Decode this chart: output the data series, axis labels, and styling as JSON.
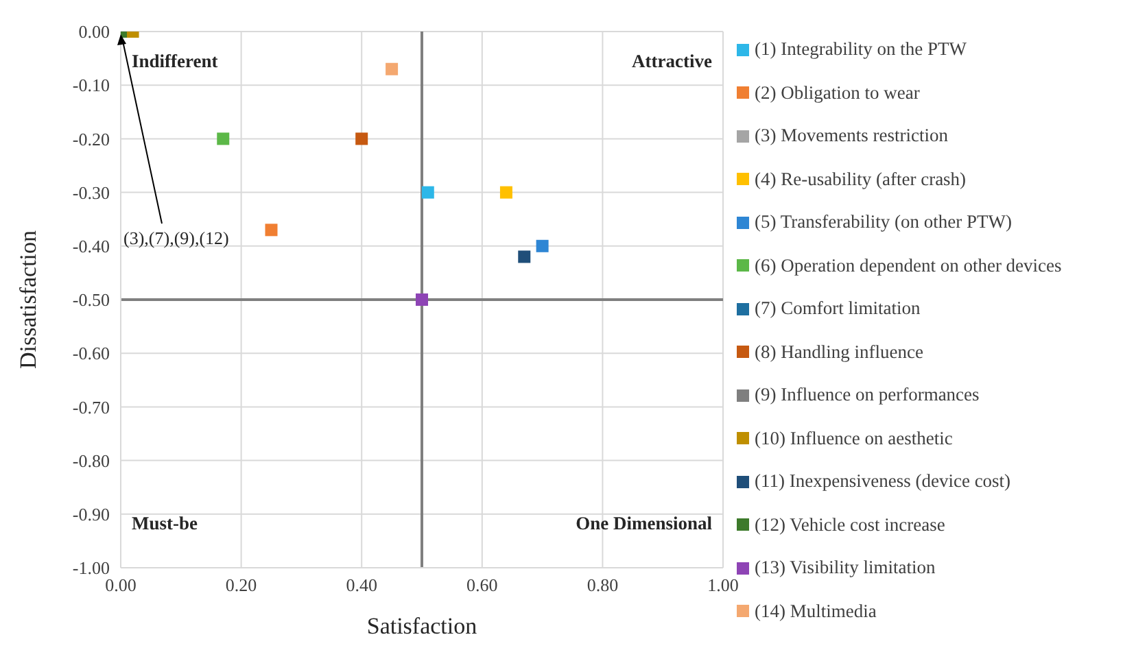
{
  "chart_data": {
    "type": "scatter",
    "xlabel": "Satisfaction",
    "ylabel": "Dissatisfaction",
    "xlim": [
      0,
      1
    ],
    "xticks": [
      {
        "value": 0,
        "label": "0.00"
      },
      {
        "value": 0.2,
        "label": "0.20"
      },
      {
        "value": 0.4,
        "label": "0.40"
      },
      {
        "value": 0.6,
        "label": "0.60"
      },
      {
        "value": 0.8,
        "label": "0.80"
      },
      {
        "value": 1,
        "label": "1.00"
      }
    ],
    "ylim": [
      -1,
      0
    ],
    "yticks": [
      {
        "value": 0,
        "label": "0.00"
      },
      {
        "value": -0.1,
        "label": "-0.10"
      },
      {
        "value": -0.2,
        "label": "-0.20"
      },
      {
        "value": -0.3,
        "label": "-0.30"
      },
      {
        "value": -0.4,
        "label": "-0.40"
      },
      {
        "value": -0.5,
        "label": "-0.50"
      },
      {
        "value": -0.6,
        "label": "-0.60"
      },
      {
        "value": -0.7,
        "label": "-0.70"
      },
      {
        "value": -0.8,
        "label": "-0.80"
      },
      {
        "value": -0.9,
        "label": "-0.90"
      },
      {
        "value": -1,
        "label": "-1.00"
      }
    ],
    "grid": true,
    "legend": "right",
    "marker": "square",
    "ref_lines": [
      {
        "axis": "x",
        "value": 0.5,
        "color": "#7f7f7f"
      },
      {
        "axis": "y",
        "value": -0.5,
        "color": "#7f7f7f"
      }
    ],
    "annotations": [
      "Indifferent",
      "Attractive",
      "Must-be",
      "One Dimensional",
      {
        "text": "(3),(7),(9),(12)",
        "x": 0,
        "y": 0
      }
    ],
    "series": [
      {
        "name": "(1) Integrability on the PTW",
        "color": "#2db7e8",
        "x": [
          0.51
        ],
        "values": [
          -0.3
        ]
      },
      {
        "name": "(2) Obligation to wear",
        "color": "#f07f32",
        "x": [
          0.25
        ],
        "values": [
          -0.37
        ]
      },
      {
        "name": "(3) Movements restriction",
        "color": "#a5a5a5",
        "x": [
          null
        ],
        "values": [
          null
        ]
      },
      {
        "name": "(4) Re-usability (after crash)",
        "color": "#ffc000",
        "x": [
          0.64
        ],
        "values": [
          -0.3
        ]
      },
      {
        "name": "(5) Transferability (on other PTW)",
        "color": "#2e86d4",
        "x": [
          0.7
        ],
        "values": [
          -0.4
        ]
      },
      {
        "name": "(6) Operation dependent on other devices",
        "color": "#5cb848",
        "x": [
          0.17
        ],
        "values": [
          -0.2
        ]
      },
      {
        "name": "(7) Comfort limitation",
        "color": "#1e6fa0",
        "x": [
          null
        ],
        "values": [
          null
        ]
      },
      {
        "name": "(8) Handling influence",
        "color": "#c65911",
        "x": [
          0.4
        ],
        "values": [
          -0.2
        ]
      },
      {
        "name": "(9) Influence on performances",
        "color": "#7f7f7f",
        "x": [
          null
        ],
        "values": [
          null
        ]
      },
      {
        "name": "(10) Influence on aesthetic",
        "color": "#bf8f00",
        "x": [
          0.02
        ],
        "values": [
          0
        ]
      },
      {
        "name": "(11) Inexpensiveness (device cost)",
        "color": "#1f4e79",
        "x": [
          0.67
        ],
        "values": [
          -0.42
        ]
      },
      {
        "name": "(12) Vehicle cost increase",
        "color": "#3d7a2b",
        "x": [
          0
        ],
        "values": [
          0
        ]
      },
      {
        "name": "(13) Visibility limitation",
        "color": "#8e44b5",
        "x": [
          0.5
        ],
        "values": [
          -0.5
        ]
      },
      {
        "name": "(14) Multimedia",
        "color": "#f4a870",
        "x": [
          0.45
        ],
        "values": [
          -0.07
        ]
      }
    ]
  }
}
